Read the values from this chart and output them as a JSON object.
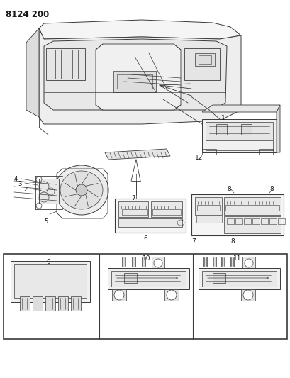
{
  "title": "8124 200",
  "bg_color": "#ffffff",
  "lc": "#3a3a3a",
  "lc2": "#555555",
  "fig_width": 4.1,
  "fig_height": 5.33,
  "dpi": 100
}
